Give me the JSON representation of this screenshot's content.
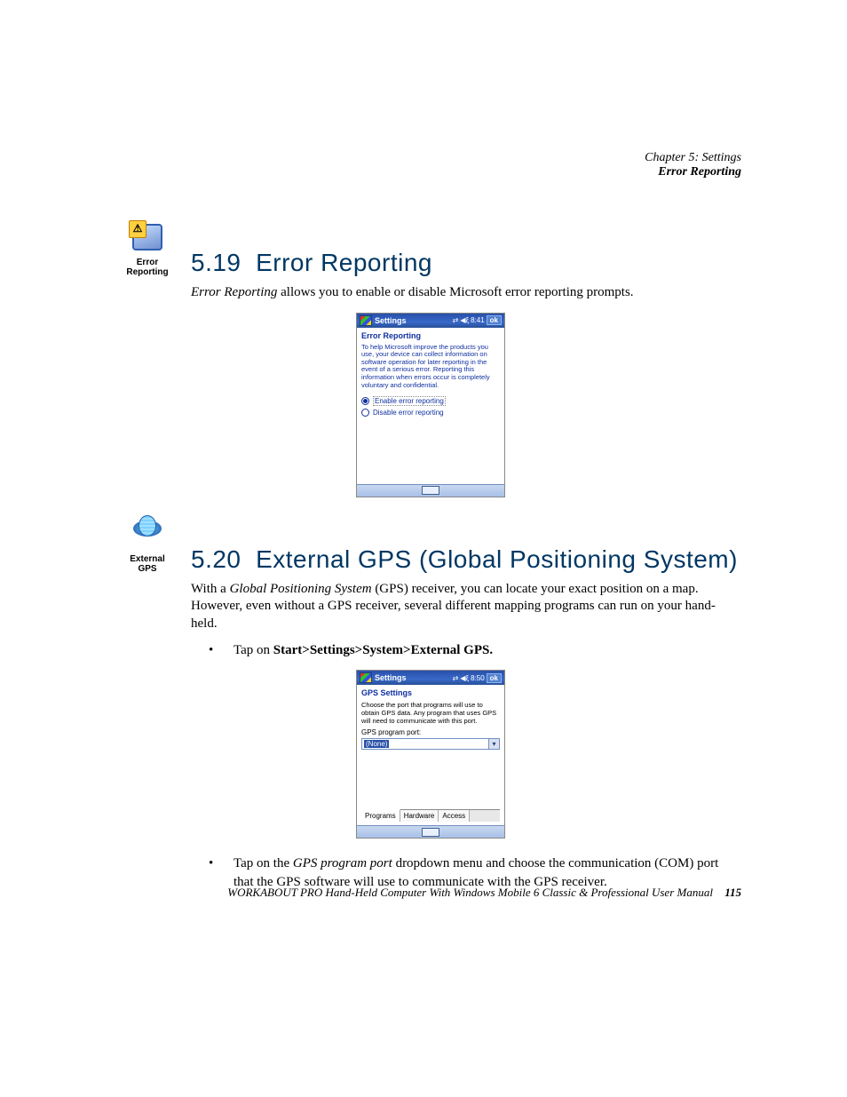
{
  "header": {
    "chapter": "Chapter 5: Settings",
    "section": "Error Reporting"
  },
  "s519": {
    "icon_caption": "Error Reporting",
    "number": "5.19",
    "title": "Error Reporting",
    "intro_em": "Error Reporting",
    "intro_rest": " allows you to enable or disable Microsoft error reporting prompts."
  },
  "wm1": {
    "title": "Settings",
    "time": "8:41",
    "ok": "ok",
    "subtitle": "Error Reporting",
    "desc": "To help Microsoft improve the products you use, your device can collect information on software operation for later reporting in the event of a serious error. Reporting this information when errors occur is completely voluntary and confidential.",
    "opt_enable": "Enable error reporting",
    "opt_disable": "Disable error reporting"
  },
  "s520": {
    "icon_caption": "External GPS",
    "number": "5.20",
    "title": "External GPS (Global Positioning System)",
    "intro_pre": "With a ",
    "intro_em": "Global Positioning System",
    "intro_post": " (GPS) receiver, you can locate your exact position on a map. However, even without a GPS receiver, several different mapping programs can run on your hand-held.",
    "bullet1_pre": "Tap on ",
    "bullet1_bold": "Start>Settings>System>External GPS.",
    "bullet2_pre": "Tap on the ",
    "bullet2_em": "GPS program port",
    "bullet2_post": " dropdown menu and choose the communication (COM) port that the GPS software will use to communicate with the GPS receiver."
  },
  "wm2": {
    "title": "Settings",
    "time": "8:50",
    "ok": "ok",
    "subtitle": "GPS Settings",
    "desc": "Choose the port that programs will use to obtain GPS data. Any program that uses GPS will need to communicate with this port.",
    "label": "GPS program port:",
    "value": "(None)",
    "tabs": [
      "Programs",
      "Hardware",
      "Access"
    ]
  },
  "footer": {
    "text": "WORKABOUT PRO Hand-Held Computer With Windows Mobile 6 Classic & Professional User Manual",
    "page": "115"
  }
}
